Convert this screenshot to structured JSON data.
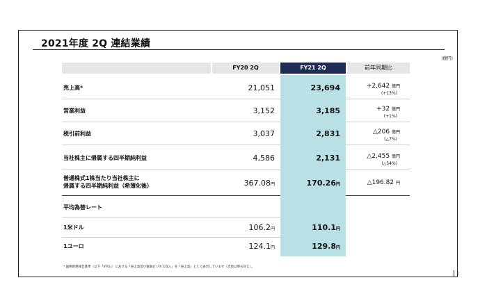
{
  "title": "2021年度 2Q 連結業績",
  "unit": "(億円)",
  "columns": {
    "fy20": "FY20 2Q",
    "fy21": "FY21 2Q",
    "yoy": "前年同期比"
  },
  "rows": [
    {
      "label": "売上高*",
      "fy20": "21,051",
      "fy21": "23,694",
      "yoy": "+2,642",
      "yoy_unit": "億円",
      "yoy_pct": "(+13%)"
    },
    {
      "label": "営業利益",
      "fy20": "3,152",
      "fy21": "3,185",
      "yoy": "+32",
      "yoy_unit": "億円",
      "yoy_pct": "(+1%)"
    },
    {
      "label": "税引前利益",
      "fy20": "3,037",
      "fy21": "2,831",
      "yoy": "△206",
      "yoy_unit": "億円",
      "yoy_pct": "(△7%)"
    },
    {
      "label": "当社株主に帰属する四半期純利益",
      "fy20": "4,586",
      "fy21": "2,131",
      "yoy": "△2,455",
      "yoy_unit": "億円",
      "yoy_pct": "(△54%)"
    }
  ],
  "eps": {
    "label_line1": "普通株式1株当たり当社株主に",
    "label_line2": "帰属する四半期純利益（希薄化後）",
    "fy20": "367.08",
    "fy21": "170.26",
    "unit": "円",
    "yoy": "△196.82",
    "yoy_unit": "円"
  },
  "fx": {
    "section_label": "平均為替レート",
    "usd": {
      "label": "1米ドル",
      "fy20": "106.2",
      "fy21": "110.1",
      "unit": "円"
    },
    "eur": {
      "label": "1ユーロ",
      "fy20": "124.1",
      "fy21": "129.8",
      "unit": "円"
    }
  },
  "footnote": "* 国際財務報告基準（以下「IFRS」）における「売上高及び金融ビジネス収入」を「売上高」として表示しています（次頁以降も同じ）。",
  "page_number": "1"
}
